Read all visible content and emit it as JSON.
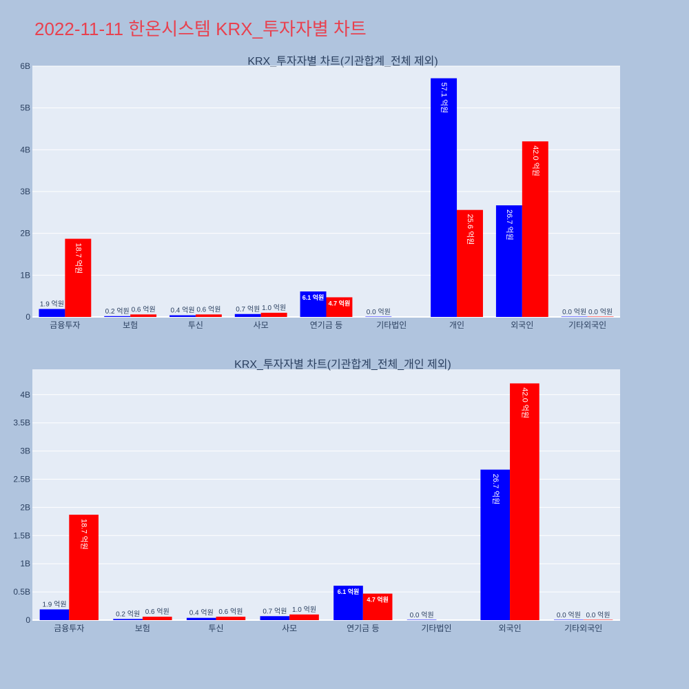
{
  "page": {
    "title": "2022-11-11 한온시스템 KRX_투자자별 차트"
  },
  "chart_data": [
    {
      "type": "bar",
      "title": "KRX_투자자별 차트(기관합계_전체 제외)",
      "categories": [
        "금융투자",
        "보험",
        "투신",
        "사모",
        "연기금 등",
        "기타법인",
        "개인",
        "외국인",
        "기타외국인"
      ],
      "series": [
        {
          "color": "#0000ff",
          "values": [
            0.19,
            0.02,
            0.04,
            0.07,
            0.61,
            0.0,
            5.71,
            2.67,
            0.0
          ],
          "labels": [
            "1.9 억원",
            "0.2 억원",
            "0.4 억원",
            "0.7 억원",
            "6.1 억원",
            "0.0 억원",
            "57.1 억원",
            "26.7 억원",
            "0.0 억원"
          ]
        },
        {
          "color": "#ff0000",
          "values": [
            1.87,
            0.06,
            0.06,
            0.1,
            0.47,
            null,
            2.56,
            4.2,
            0.0
          ],
          "labels": [
            "18.7 억원",
            "0.6 억원",
            "0.6 억원",
            "1.0 억원",
            "4.7 억원",
            "",
            "25.6 억원",
            "42.0 억원",
            "0.0 억원"
          ]
        }
      ],
      "yticks": [
        "0",
        "1B",
        "2B",
        "3B",
        "4B",
        "5B",
        "6B"
      ],
      "ylim": [
        0,
        6
      ],
      "grid": true
    },
    {
      "type": "bar",
      "title": "KRX_투자자별 차트(기관합계_전체_개인 제외)",
      "categories": [
        "금융투자",
        "보험",
        "투신",
        "사모",
        "연기금 등",
        "기타법인",
        "외국인",
        "기타외국인"
      ],
      "series": [
        {
          "color": "#0000ff",
          "values": [
            0.19,
            0.02,
            0.04,
            0.07,
            0.61,
            0.0,
            2.67,
            0.0
          ],
          "labels": [
            "1.9 억원",
            "0.2 억원",
            "0.4 억원",
            "0.7 억원",
            "6.1 억원",
            "0.0 억원",
            "26.7 억원",
            "0.0 억원"
          ]
        },
        {
          "color": "#ff0000",
          "values": [
            1.87,
            0.06,
            0.06,
            0.1,
            0.47,
            null,
            4.2,
            0.0
          ],
          "labels": [
            "18.7 억원",
            "0.6 억원",
            "0.6 억원",
            "1.0 억원",
            "4.7 억원",
            "",
            "42.0 억원",
            "0.0 억원"
          ]
        }
      ],
      "yticks": [
        "0",
        "0.5B",
        "1B",
        "1.5B",
        "2B",
        "2.5B",
        "3B",
        "3.5B",
        "4B"
      ],
      "ylim": [
        0,
        4.45
      ],
      "grid": true
    }
  ]
}
